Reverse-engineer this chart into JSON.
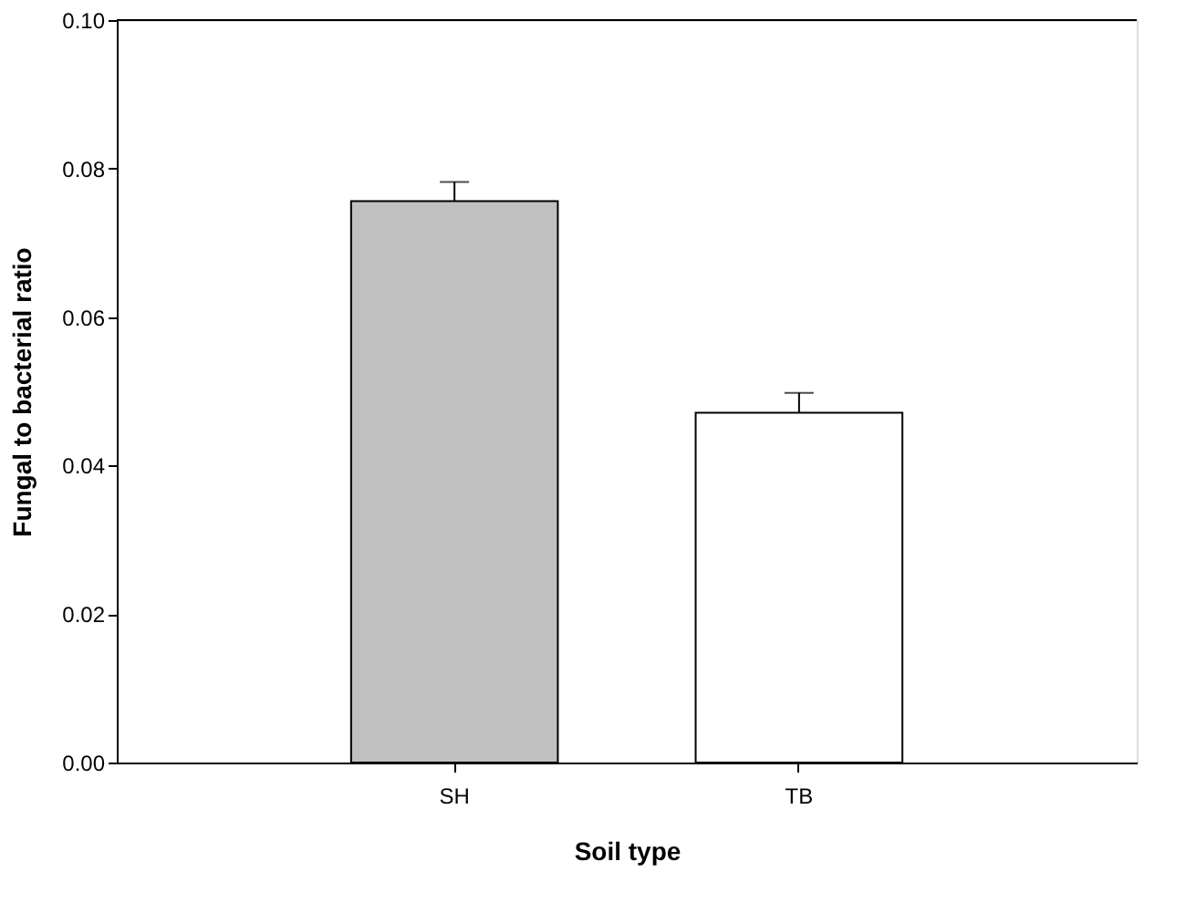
{
  "chart_data": {
    "type": "bar",
    "xlabel": "Soil type",
    "ylabel": "Fungal to bacterial ratio",
    "categories": [
      "SH",
      "TB"
    ],
    "values": [
      0.0756,
      0.0471
    ],
    "errors": [
      0.0026,
      0.0027
    ],
    "colors": [
      "#c0c0c0",
      "#ffffff"
    ],
    "ylim": [
      0,
      0.1
    ],
    "yticks": [
      {
        "value": 0,
        "label": "0.00"
      },
      0.02,
      0.04,
      0.06,
      0.08,
      {
        "value": 0.1,
        "label": "0.10"
      }
    ],
    "grid": false
  }
}
